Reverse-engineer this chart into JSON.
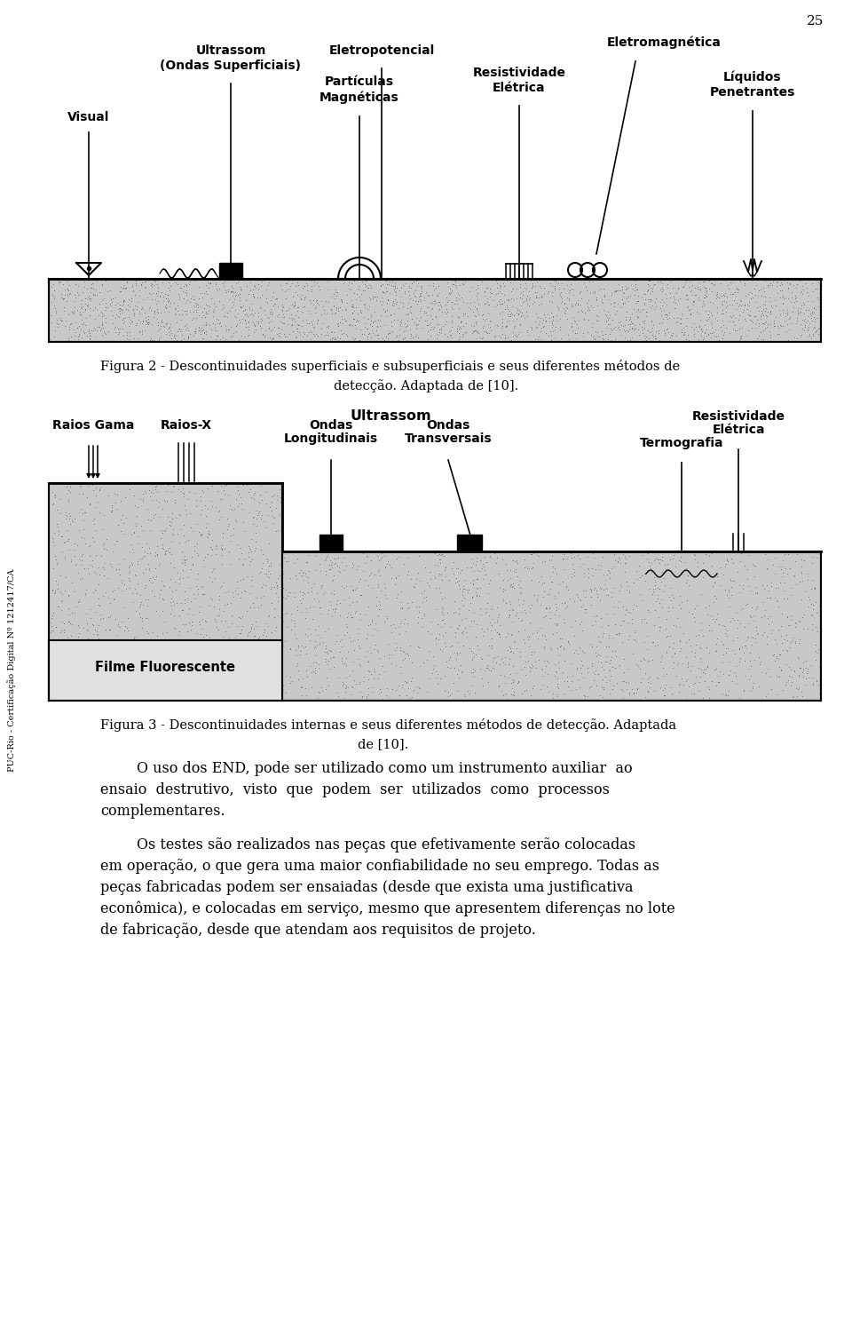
{
  "page_number": "25",
  "background_color": "#ffffff",
  "sidebar_text": "PUC-Rio - Certificação Digital Nº 1212417/CA",
  "fig2_caption_line1": "Figura 2 - Descontinuidades superficiais e subsuperficiais e seus diferentes métodos de",
  "fig2_caption_line2": "detecção. Adaptada de [10].",
  "fig3_caption_line1": "Figura 3 - Descontinuidades internas e seus diferentes métodos de detecção. Adaptada",
  "fig3_caption_line2": "de [10].",
  "para1_line1": "        O uso dos END, pode ser utilizado como um instrumento auxiliar  ao",
  "para1_line2": "ensaio  destrutivo,  visto  que  podem  ser  utilizados  como  processos",
  "para1_line3": "complementares.",
  "para2_line1": "        Os testes são realizados nas peças que efetivamente serão colocadas",
  "para2_line2": "em operação, o que gera uma maior confiabilidade no seu emprego. Todas as",
  "para2_line3": "peças fabricadas podem ser ensaiadas (desde que exista uma justificativa",
  "para2_line4": "econômica), e colocadas em serviço, mesmo que apresentem diferenças no lote",
  "para2_line5": "de fabricação, desde que atendam aos requisitos de projeto.",
  "caption_fontsize": 10.5,
  "body_fontsize": 11.5,
  "label_fontsize": 10.0,
  "sidebar_fontsize": 7.0,
  "pagenum_fontsize": 11.0,
  "fig2_ground_color": "#c8c8c8",
  "fig3_body_color": "#c8c8c8",
  "fig3_film_color": "#e0e0e0"
}
